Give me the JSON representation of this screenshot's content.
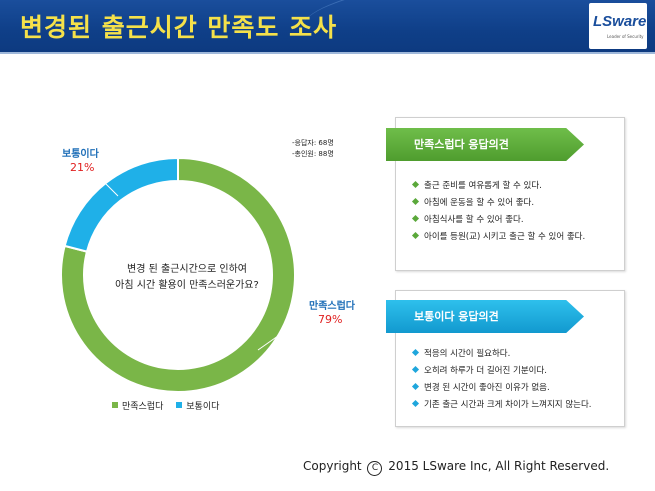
{
  "header": {
    "title": "변경된 출근시간 만족도 조사",
    "logo_text": "LSware",
    "logo_sub": "Leader of Security"
  },
  "chart_data": {
    "type": "pie",
    "title": "",
    "center_question": [
      "변경 된 출근시간으로 인하여",
      "아침 시간 활용이 만족스러운가요?"
    ],
    "categories": [
      "만족스럽다",
      "보통이다"
    ],
    "values": [
      79,
      21
    ],
    "value_labels": [
      "79%",
      "21%"
    ],
    "colors": [
      "#7ab648",
      "#1fb0e8"
    ],
    "legend_position": "bottom-left"
  },
  "respondents": {
    "line1": "-응답자: 68명",
    "line2": "-총인원: 88명"
  },
  "satisfied_panel": {
    "title": "만족스럽다 응답의견",
    "items": [
      "출근 준비를 여유롭게 할 수 있다.",
      "아침에 운동을 할 수 있어 좋다.",
      "아침식사를 할 수 있어 좋다.",
      "아이를 등원(교) 시키고 출근 할 수 있어 좋다."
    ]
  },
  "neutral_panel": {
    "title": "보통이다 응답의견",
    "items": [
      "적응의 시간이 필요하다.",
      "오히려 하루가 더 길어진 기분이다.",
      "변경 된 시간이 좋아진 이유가 없음.",
      "기존 출근 시간과 크게 차이가 느껴지지 않는다."
    ]
  },
  "footer": {
    "copyright_prefix": "Copyright",
    "copyright_symbol": "C",
    "copyright_rest": "2015 LSware Inc, All Right Reserved."
  }
}
